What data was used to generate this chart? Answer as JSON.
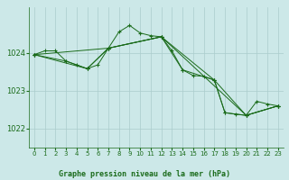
{
  "title": "Graphe pression niveau de la mer (hPa)",
  "bg_color": "#cce8e8",
  "grid_color": "#aacccc",
  "line_color": "#1a6b1a",
  "ylim": [
    1021.5,
    1025.2
  ],
  "xlim": [
    -0.5,
    23.5
  ],
  "yticks": [
    1022,
    1023,
    1024
  ],
  "xticks": [
    0,
    1,
    2,
    3,
    4,
    5,
    6,
    7,
    8,
    9,
    10,
    11,
    12,
    13,
    14,
    15,
    16,
    17,
    18,
    19,
    20,
    21,
    22,
    23
  ],
  "series1": [
    [
      0,
      1023.95
    ],
    [
      1,
      1024.05
    ],
    [
      2,
      1024.05
    ],
    [
      3,
      1023.78
    ],
    [
      4,
      1023.68
    ],
    [
      5,
      1023.58
    ],
    [
      6,
      1023.68
    ],
    [
      7,
      1024.12
    ],
    [
      8,
      1024.55
    ],
    [
      9,
      1024.72
    ],
    [
      10,
      1024.52
    ],
    [
      11,
      1024.45
    ],
    [
      12,
      1024.42
    ],
    [
      13,
      1024.05
    ],
    [
      14,
      1023.55
    ],
    [
      15,
      1023.4
    ],
    [
      16,
      1023.38
    ],
    [
      17,
      1023.28
    ],
    [
      18,
      1022.42
    ],
    [
      19,
      1022.38
    ],
    [
      20,
      1022.35
    ],
    [
      21,
      1022.72
    ],
    [
      22,
      1022.65
    ],
    [
      23,
      1022.6
    ]
  ],
  "series2": [
    [
      0,
      1023.95
    ],
    [
      3,
      1023.78
    ],
    [
      5,
      1023.58
    ],
    [
      7,
      1024.12
    ],
    [
      12,
      1024.42
    ],
    [
      14,
      1023.55
    ],
    [
      17,
      1023.28
    ],
    [
      18,
      1022.42
    ],
    [
      20,
      1022.35
    ],
    [
      23,
      1022.6
    ]
  ],
  "series3": [
    [
      0,
      1023.95
    ],
    [
      5,
      1023.58
    ],
    [
      7,
      1024.12
    ],
    [
      12,
      1024.42
    ],
    [
      17,
      1023.28
    ],
    [
      20,
      1022.35
    ],
    [
      23,
      1022.6
    ]
  ],
  "series4": [
    [
      0,
      1023.95
    ],
    [
      7,
      1024.12
    ],
    [
      12,
      1024.42
    ],
    [
      20,
      1022.35
    ],
    [
      23,
      1022.6
    ]
  ]
}
